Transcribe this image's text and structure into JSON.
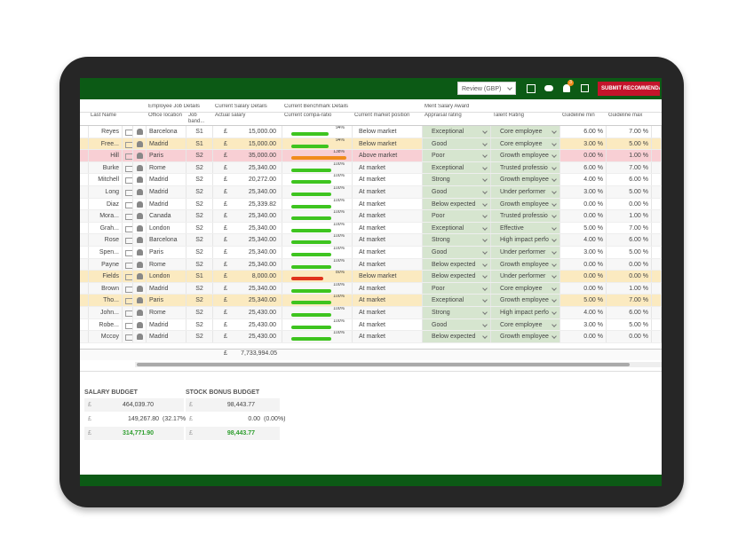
{
  "toolbar": {
    "review": "Review (GBP)",
    "notification_count": "3",
    "submit": "SUBMIT RECOMMENDATI"
  },
  "currency": "£",
  "groups": [
    "Employee Job Details",
    "Current Salary Details",
    "Current Benchmark Details",
    "Merit Salary Award"
  ],
  "columns": {
    "name": "Last Name",
    "office": "Office location",
    "band": "Job band...",
    "salary": "Actual salary",
    "compa": "Current compa-ratio",
    "position": "Current market position",
    "appraisal": "Appraisal rating",
    "talent": "Talent Rating",
    "min": "Guideline min",
    "max": "Guideline max"
  },
  "rows": [
    {
      "name": "Reyes",
      "office": "Barcelona",
      "band": "S1",
      "salary": "15,000.00",
      "compa": 94,
      "compa_label": "94%",
      "bar_color": "#3ec41f",
      "position": "Below market",
      "appraisal": "Exceptional",
      "talent": "Core employee",
      "min": "6.00 %",
      "max": "7.00 %"
    },
    {
      "name": "Free...",
      "office": "Madrid",
      "band": "S1",
      "salary": "15,000.00",
      "compa": 94,
      "compa_label": "94%",
      "bar_color": "#3ec41f",
      "position": "Below market",
      "appraisal": "Good",
      "talent": "Core employee",
      "min": "3.00 %",
      "max": "5.00 %",
      "highlight": "#fbeac0"
    },
    {
      "name": "Hill",
      "office": "Paris",
      "band": "S2",
      "salary": "35,000.00",
      "compa": 138,
      "compa_label": "138%",
      "bar_color": "#f08c1c",
      "position": "Above market",
      "appraisal": "Poor",
      "talent": "Growth employee",
      "min": "0.00 %",
      "max": "1.00 %",
      "highlight": "#f8cfd4"
    },
    {
      "name": "Burke",
      "office": "Rome",
      "band": "S2",
      "salary": "25,340.00",
      "compa": 100,
      "compa_label": "100%",
      "bar_color": "#3ec41f",
      "position": "At market",
      "appraisal": "Exceptional",
      "talent": "Trusted professio",
      "min": "6.00 %",
      "max": "7.00 %"
    },
    {
      "name": "Mitchell",
      "office": "Madrid",
      "band": "S2",
      "salary": "20,272.00",
      "compa": 100,
      "compa_label": "100%",
      "bar_color": "#3ec41f",
      "position": "At market",
      "appraisal": "Strong",
      "talent": "Growth employee",
      "min": "4.00 %",
      "max": "6.00 %"
    },
    {
      "name": "Long",
      "office": "Madrid",
      "band": "S2",
      "salary": "25,340.00",
      "compa": 100,
      "compa_label": "100%",
      "bar_color": "#3ec41f",
      "position": "At market",
      "appraisal": "Good",
      "talent": "Under performer",
      "min": "3.00 %",
      "max": "5.00 %"
    },
    {
      "name": "Diaz",
      "office": "Madrid",
      "band": "S2",
      "salary": "25,339.82",
      "compa": 100,
      "compa_label": "100%",
      "bar_color": "#3ec41f",
      "position": "At market",
      "appraisal": "Below expected",
      "talent": "Growth employee",
      "min": "0.00 %",
      "max": "0.00 %"
    },
    {
      "name": "Mora...",
      "office": "Canada",
      "band": "S2",
      "salary": "25,340.00",
      "compa": 100,
      "compa_label": "100%",
      "bar_color": "#3ec41f",
      "position": "At market",
      "appraisal": "Poor",
      "talent": "Trusted professio",
      "min": "0.00 %",
      "max": "1.00 %"
    },
    {
      "name": "Grah...",
      "office": "London",
      "band": "S2",
      "salary": "25,340.00",
      "compa": 100,
      "compa_label": "100%",
      "bar_color": "#3ec41f",
      "position": "At market",
      "appraisal": "Exceptional",
      "talent": "Effective",
      "min": "5.00 %",
      "max": "7.00 %"
    },
    {
      "name": "Rose",
      "office": "Barcelona",
      "band": "S2",
      "salary": "25,340.00",
      "compa": 100,
      "compa_label": "100%",
      "bar_color": "#3ec41f",
      "position": "At market",
      "appraisal": "Strong",
      "talent": "High impact perfo",
      "min": "4.00 %",
      "max": "6.00 %"
    },
    {
      "name": "Spen...",
      "office": "Paris",
      "band": "S2",
      "salary": "25,340.00",
      "compa": 100,
      "compa_label": "100%",
      "bar_color": "#3ec41f",
      "position": "At market",
      "appraisal": "Good",
      "talent": "Under performer",
      "min": "3.00 %",
      "max": "5.00 %"
    },
    {
      "name": "Payne",
      "office": "Rome",
      "band": "S2",
      "salary": "25,340.00",
      "compa": 100,
      "compa_label": "100%",
      "bar_color": "#3ec41f",
      "position": "At market",
      "appraisal": "Below expected",
      "talent": "Growth employee",
      "min": "0.00 %",
      "max": "0.00 %"
    },
    {
      "name": "Fields",
      "office": "London",
      "band": "S1",
      "salary": "8,000.00",
      "compa": 80,
      "compa_label": "80%",
      "bar_color": "#e0341c",
      "position": "Below market",
      "appraisal": "Below expected",
      "talent": "Under performer",
      "min": "0.00 %",
      "max": "0.00 %",
      "highlight": "#fbeac0"
    },
    {
      "name": "Brown",
      "office": "Madrid",
      "band": "S2",
      "salary": "25,340.00",
      "compa": 100,
      "compa_label": "100%",
      "bar_color": "#3ec41f",
      "position": "At market",
      "appraisal": "Poor",
      "talent": "Core employee",
      "min": "0.00 %",
      "max": "1.00 %"
    },
    {
      "name": "Tho...",
      "office": "Paris",
      "band": "S2",
      "salary": "25,340.00",
      "compa": 100,
      "compa_label": "100%",
      "bar_color": "#3ec41f",
      "position": "At market",
      "appraisal": "Exceptional",
      "talent": "Growth employee",
      "min": "5.00 %",
      "max": "7.00 %",
      "highlight": "#fbeac0"
    },
    {
      "name": "John...",
      "office": "Rome",
      "band": "S2",
      "salary": "25,430.00",
      "compa": 100,
      "compa_label": "100%",
      "bar_color": "#3ec41f",
      "position": "At market",
      "appraisal": "Strong",
      "talent": "High impact perfo",
      "min": "4.00 %",
      "max": "6.00 %"
    },
    {
      "name": "Robe...",
      "office": "Madrid",
      "band": "S2",
      "salary": "25,430.00",
      "compa": 100,
      "compa_label": "100%",
      "bar_color": "#3ec41f",
      "position": "At market",
      "appraisal": "Good",
      "talent": "Core employee",
      "min": "3.00 %",
      "max": "5.00 %"
    },
    {
      "name": "Mccoy",
      "office": "Madrid",
      "band": "S2",
      "salary": "25,430.00",
      "compa": 100,
      "compa_label": "100%",
      "bar_color": "#3ec41f",
      "position": "At market",
      "appraisal": "Below expected",
      "talent": "Growth employee",
      "min": "0.00 %",
      "max": "0.00 %"
    }
  ],
  "total_salary": "7,733,994.05",
  "budgets": [
    {
      "title": "SALARY BUDGET",
      "lines": [
        {
          "amount": "464,039.70"
        },
        {
          "amount": "149,267.80",
          "percent": "(32.17%)"
        },
        {
          "amount": "314,771.90",
          "total": true
        }
      ]
    },
    {
      "title": "STOCK BONUS BUDGET",
      "lines": [
        {
          "amount": "98,443.77"
        },
        {
          "amount": "0.00",
          "percent": "(0.00%)"
        },
        {
          "amount": "98,443.77",
          "total": true
        }
      ]
    }
  ]
}
